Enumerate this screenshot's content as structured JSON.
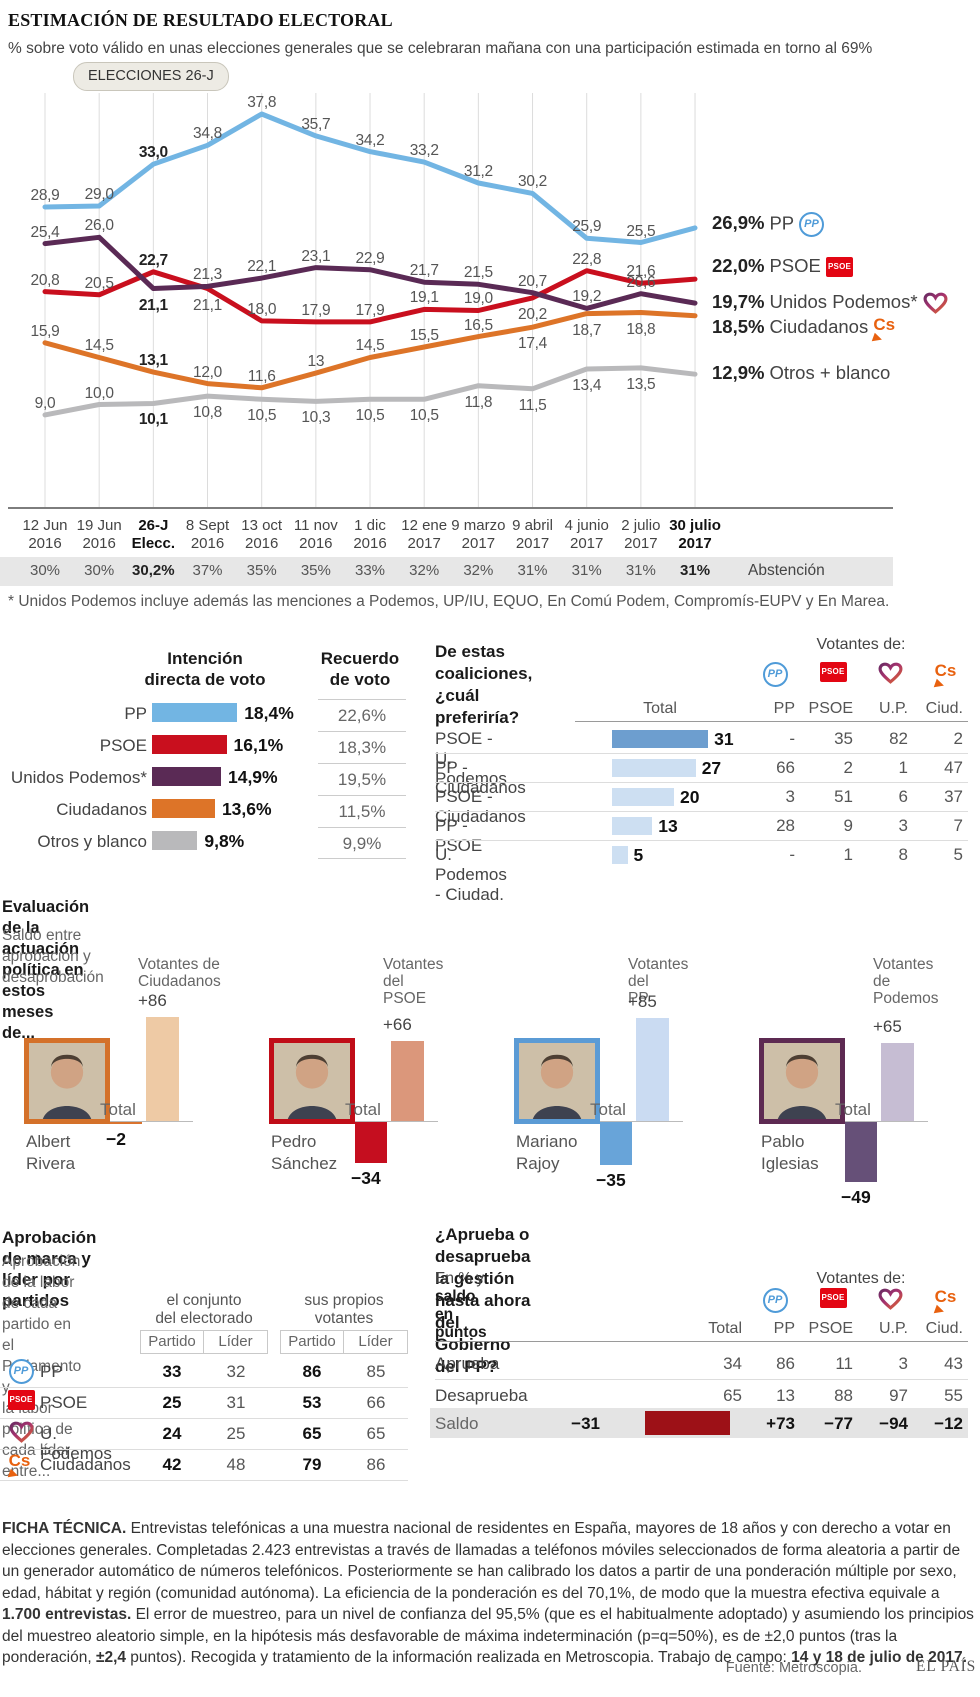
{
  "header": {
    "title": "ESTIMACIÓN DE RESULTADO ELECTORAL",
    "subtitle": "% sobre voto válido en unas elecciones generales que se celebraran mañana con una participación estimada en torno al 69%"
  },
  "badge": "ELECCIONES 26-J",
  "footnote": "* Unidos Podemos incluye además las menciones a Podemos, UP/IU, EQUO, En Comú Podem, Compromís-EUPV y En Marea.",
  "colors": {
    "pp": "#72b5e3",
    "psoe": "#c90f1e",
    "up": "#5a2a55",
    "cs": "#dd7428",
    "otros": "#b9b9bb",
    "coalition_bar": "#6d9ecf",
    "coalition_bar_light": "#cddff2",
    "saldo_bar": "#9d1117",
    "abstencion_band": "#e7e7e7"
  },
  "chart_data": [
    {
      "type": "line",
      "title": "Estimación de resultado electoral (% sobre voto válido)",
      "x": [
        {
          "l1": "12 Jun",
          "l2": "2016",
          "bold": false
        },
        {
          "l1": "19 Jun",
          "l2": "2016",
          "bold": false
        },
        {
          "l1": "26-J",
          "l2": "Elecc.",
          "bold": true
        },
        {
          "l1": "8 Sept",
          "l2": "2016",
          "bold": false
        },
        {
          "l1": "13 oct",
          "l2": "2016",
          "bold": false
        },
        {
          "l1": "11 nov",
          "l2": "2016",
          "bold": false
        },
        {
          "l1": "1 dic",
          "l2": "2016",
          "bold": false
        },
        {
          "l1": "12 ene",
          "l2": "2017",
          "bold": false
        },
        {
          "l1": "9 marzo",
          "l2": "2017",
          "bold": false
        },
        {
          "l1": "9 abril",
          "l2": "2017",
          "bold": false
        },
        {
          "l1": "4 junio",
          "l2": "2017",
          "bold": false
        },
        {
          "l1": "2 julio",
          "l2": "2017",
          "bold": false
        },
        {
          "l1": "30 julio",
          "l2": "2017",
          "bold": true
        }
      ],
      "series": [
        {
          "key": "pp",
          "name": "PP",
          "color": "#72b5e3",
          "values": [
            28.9,
            29.0,
            33.0,
            34.8,
            37.8,
            35.7,
            34.2,
            33.2,
            31.2,
            30.2,
            25.9,
            25.5,
            26.9
          ],
          "labels": [
            "28,9",
            "29,0",
            "33,0",
            "34,8",
            "37,8",
            "35,7",
            "34,2",
            "33,2",
            "31,2",
            "30,2",
            "25,9",
            "25,5"
          ]
        },
        {
          "key": "psoe",
          "name": "PSOE",
          "color": "#c90f1e",
          "values": [
            20.8,
            20.5,
            22.7,
            21.1,
            18.0,
            17.9,
            17.9,
            19.1,
            19.0,
            20.2,
            22.8,
            21.6,
            22.0
          ],
          "labels": [
            "20,8",
            "20,5",
            "22,7",
            "21,1",
            "18,0",
            "17,9",
            "17,9",
            "19,1",
            "19,0",
            "20,2",
            "22,8",
            "21,6"
          ]
        },
        {
          "key": "up",
          "name": "Unidos Podemos*",
          "color": "#5a2a55",
          "values": [
            25.4,
            26.0,
            21.1,
            21.3,
            22.1,
            23.1,
            22.9,
            21.7,
            21.5,
            20.7,
            19.2,
            20.6,
            19.7
          ],
          "labels": [
            "25,4",
            "26,0",
            "21,1",
            "21,3",
            "22,1",
            "23,1",
            "22,9",
            "21,7",
            "21,5",
            "20,7",
            "19,2",
            "20,6"
          ]
        },
        {
          "key": "cs",
          "name": "Ciudadanos",
          "color": "#dd7428",
          "values": [
            15.9,
            14.5,
            13.1,
            12.0,
            11.6,
            13,
            14.5,
            15.5,
            16.5,
            17.4,
            18.7,
            18.8,
            18.5
          ],
          "labels": [
            "15,9",
            "14,5",
            "13,1",
            "12,0",
            "11,6",
            "13",
            "14,5",
            "15,5",
            "16,5",
            "17,4",
            "18,7",
            "18,8"
          ]
        },
        {
          "key": "otros",
          "name": "Otros + blanco",
          "color": "#b9b9bb",
          "values": [
            9.0,
            10.0,
            10.1,
            10.8,
            10.5,
            10.3,
            10.5,
            10.5,
            11.8,
            11.5,
            13.4,
            13.5,
            12.9
          ],
          "labels": [
            "9,0",
            "10,0",
            "10,1",
            "10,8",
            "10,5",
            "10,3",
            "10,5",
            "10,5",
            "11,8",
            "11,5",
            "13,4",
            "13,5"
          ]
        }
      ],
      "legend": [
        {
          "key": "pp",
          "pct": "26,9%",
          "name": "PP",
          "icon": "pp",
          "value": 26.9
        },
        {
          "key": "psoe",
          "pct": "22,0%",
          "name": "PSOE",
          "icon": "psoe",
          "value": 22.0
        },
        {
          "key": "up",
          "pct": "19,7%",
          "name": "Unidos Podemos*",
          "icon": "up",
          "value": 19.7
        },
        {
          "key": "cs",
          "pct": "18,5%",
          "name": "Ciudadanos",
          "icon": "cs",
          "value": 18.5
        },
        {
          "key": "otros",
          "pct": "12,9%",
          "name": "Otros + blanco",
          "icon": "",
          "value": 12.9
        }
      ],
      "abstencion": {
        "values": [
          "30%",
          "30%",
          "30,2%",
          "37%",
          "35%",
          "35%",
          "33%",
          "32%",
          "32%",
          "31%",
          "31%",
          "31%",
          "31%"
        ],
        "bold": [
          2,
          12
        ],
        "label": "Abstención"
      }
    },
    {
      "type": "bar",
      "title_col1": "Intención\ndirecta de voto",
      "title_col2": "Recuerdo\nde voto",
      "rows": [
        {
          "key": "pp",
          "label": "PP",
          "value": 18.4,
          "display": "18,4%",
          "recuerdo": "22,6%"
        },
        {
          "key": "psoe",
          "label": "PSOE",
          "value": 16.1,
          "display": "16,1%",
          "recuerdo": "18,3%"
        },
        {
          "key": "up",
          "label": "Unidos Podemos*",
          "value": 14.9,
          "display": "14,9%",
          "recuerdo": "19,5%"
        },
        {
          "key": "cs",
          "label": "Ciudadanos",
          "value": 13.6,
          "display": "13,6%",
          "recuerdo": "11,5%"
        },
        {
          "key": "otros",
          "label": "Otros y blanco",
          "value": 9.8,
          "display": "9,8%",
          "recuerdo": "9,9%"
        }
      ]
    },
    {
      "type": "table",
      "title": "De estas coaliciones,\n¿cuál preferiría?",
      "votantes": "Votantes de:",
      "total_label": "Total",
      "columns": [
        {
          "key": "pp",
          "label": "PP"
        },
        {
          "key": "psoe",
          "label": "PSOE"
        },
        {
          "key": "up",
          "label": "U.P."
        },
        {
          "key": "cs",
          "label": "Ciud."
        }
      ],
      "rows": [
        {
          "label": "PSOE - U. Podemos",
          "total": 31,
          "cells": [
            "-",
            "35",
            "82",
            "2"
          ]
        },
        {
          "label": "PP - Ciudadanos",
          "total": 27,
          "cells": [
            "66",
            "2",
            "1",
            "47"
          ]
        },
        {
          "label": "PSOE - Ciudadanos",
          "total": 20,
          "cells": [
            "3",
            "51",
            "6",
            "37"
          ]
        },
        {
          "label": "PP - PSOE",
          "total": 13,
          "cells": [
            "28",
            "9",
            "3",
            "7"
          ]
        },
        {
          "label": "U. Podemos - Ciudad.",
          "total": 5,
          "cells": [
            "-",
            "1",
            "8",
            "5"
          ]
        }
      ]
    },
    {
      "type": "bar",
      "title": "Evaluación de la actuación política en estos meses de...",
      "subtitle": "Saldo entre aprobación y desaprobación",
      "total_label": "Total",
      "panels": [
        {
          "name": "Albert\nRivera",
          "group": "Votantes de\nCiudadanos",
          "group_value": 86,
          "group_display": "+86",
          "total": -2,
          "total_display": "−2",
          "border": "#d4712a",
          "bar_light": "#eecaa5",
          "bar_solid": "#d9732e"
        },
        {
          "name": "Pedro\nSánchez",
          "group": "Votantes del\nPSOE",
          "group_value": 66,
          "group_display": "+66",
          "total": -34,
          "total_display": "−34",
          "border": "#c00d18",
          "bar_light": "#db977b",
          "bar_solid": "#c50e1f"
        },
        {
          "name": "Mariano\nRajoy",
          "group": "Votantes del\nPP",
          "group_value": 85,
          "group_display": "+85",
          "total": -35,
          "total_display": "−35",
          "border": "#5b9bd5",
          "bar_light": "#cadbf2",
          "bar_solid": "#68a4d9"
        },
        {
          "name": "Pablo\nIglesias",
          "group": "Votantes de\nPodemos",
          "group_value": 65,
          "group_display": "+65",
          "total": -49,
          "total_display": "−49",
          "border": "#5d2a52",
          "bar_light": "#c6bdd3",
          "bar_solid": "#665078"
        }
      ]
    },
    {
      "type": "table",
      "title": "Aprobación de marca y líder por partidos",
      "subtitle": "Aprobación de la labor de cada partido en el Parlamento y\nla labor política de cada líder entre...",
      "group1": "el conjunto\ndel electorado",
      "group2": "sus propios\nvotantes",
      "col1": "Partido",
      "col2": "Líder",
      "rows": [
        {
          "icon": "pp",
          "label": "PP",
          "values": [
            "33",
            "32",
            "86",
            "85"
          ]
        },
        {
          "icon": "psoe",
          "label": "PSOE",
          "values": [
            "25",
            "31",
            "53",
            "66"
          ]
        },
        {
          "icon": "up",
          "label": "U. Podemos",
          "values": [
            "24",
            "25",
            "65",
            "65"
          ]
        },
        {
          "icon": "cs",
          "label": "Ciudadanos",
          "values": [
            "42",
            "48",
            "79",
            "86"
          ]
        }
      ]
    },
    {
      "type": "table",
      "title": "¿Aprueba o desaprueba la gestión hasta ahora\ndel Gobierno del PP?",
      "sub_plain": "En % y ",
      "sub_bold": "saldo en puntos",
      "votantes": "Votantes de:",
      "total_label": "Total",
      "columns": [
        {
          "key": "pp",
          "label": "PP"
        },
        {
          "key": "psoe",
          "label": "PSOE"
        },
        {
          "key": "up",
          "label": "U.P."
        },
        {
          "key": "cs",
          "label": "Ciud."
        }
      ],
      "rows": [
        {
          "label": "Aprueba",
          "cells": [
            "34",
            "86",
            "11",
            "3",
            "43"
          ]
        },
        {
          "label": "Desaprueba",
          "cells": [
            "65",
            "13",
            "88",
            "97",
            "55"
          ]
        }
      ],
      "saldo": {
        "label": "Saldo",
        "total": "−31",
        "total_value": -31,
        "cells": [
          "+73",
          "−77",
          "−94",
          "−12"
        ]
      }
    }
  ],
  "ficha": {
    "segments": [
      {
        "b": 1,
        "t": "FICHA TÉCNICA. "
      },
      {
        "b": 0,
        "t": "Entrevistas telefónicas a una muestra nacional de residentes en España, mayores de 18 años y con derecho a votar en elecciones generales. Completadas 2.423 entrevistas a través de llamadas a teléfonos móviles seleccionados de forma aleatoria a partir de un generador automático de números telefónicos. Posteriormente se han calibrado los datos a partir de una ponderación múltiple por sexo, edad, hábitat y región (comunidad autónoma). La eficiencia de la ponderación es del 70,1%, de modo que la muestra efectiva equivale a "
      },
      {
        "b": 1,
        "t": "1.700 entrevistas."
      },
      {
        "b": 0,
        "t": " El error de muestreo, para un nivel de confianza del 95,5% (que es el habitualmente adoptado) y asumiendo los principios del muestreo aleatorio simple, en la hipótesis más desfavorable de máxima indeterminación (p=q=50%), es de ±2,0 puntos (tras la ponderación, "
      },
      {
        "b": 1,
        "t": "±2,4"
      },
      {
        "b": 0,
        "t": " puntos). Recogida y tratamiento de la información realizada en Metroscopia. Trabajo de campo: "
      },
      {
        "b": 1,
        "t": "14 y 18 de julio de 2017."
      }
    ]
  },
  "footer": {
    "fuente": "Fuente: Metroscopia.",
    "brand": "EL PAÍS"
  }
}
